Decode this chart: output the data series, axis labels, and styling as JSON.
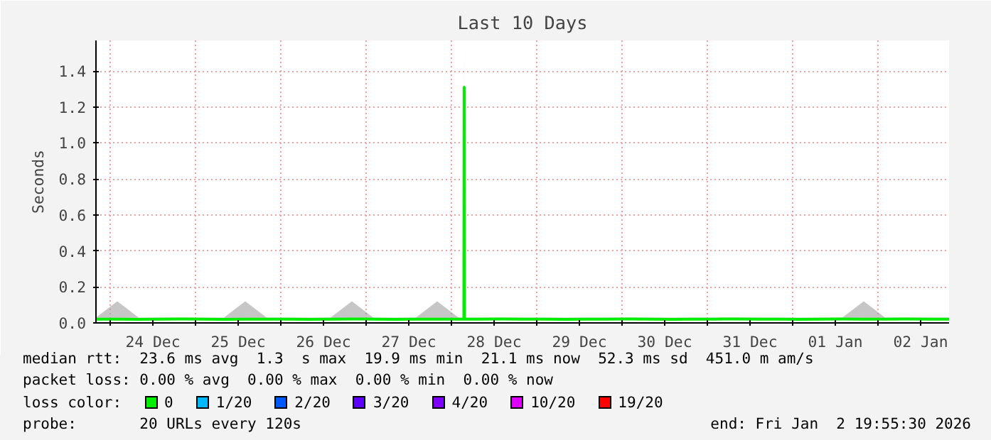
{
  "chart_data": {
    "type": "line",
    "title": "Last 10 Days",
    "ylabel": "Seconds",
    "legend_title": "loss color:",
    "x": [
      "2025-12-23T20:00",
      "2025-12-24T02:00",
      "2025-12-24T08:00",
      "2025-12-24T14:00",
      "2025-12-24T20:00",
      "2025-12-25T02:00",
      "2025-12-25T08:00",
      "2025-12-25T14:00",
      "2025-12-25T20:00",
      "2025-12-26T02:00",
      "2025-12-26T08:00",
      "2025-12-26T14:00",
      "2025-12-26T20:00",
      "2025-12-27T02:00",
      "2025-12-27T08:00",
      "2025-12-27T14:00",
      "2025-12-27T20:00",
      "2025-12-28T02:00",
      "2025-12-28T03:30",
      "2025-12-28T03:36",
      "2025-12-28T03:42",
      "2025-12-28T08:00",
      "2025-12-28T14:00",
      "2025-12-28T20:00",
      "2025-12-29T02:00",
      "2025-12-29T08:00",
      "2025-12-29T14:00",
      "2025-12-29T20:00",
      "2025-12-30T02:00",
      "2025-12-30T08:00",
      "2025-12-30T14:00",
      "2025-12-30T20:00",
      "2025-12-31T02:00",
      "2025-12-31T08:00",
      "2025-12-31T14:00",
      "2025-12-31T20:00",
      "2026-01-01T02:00",
      "2026-01-01T08:00",
      "2026-01-01T14:00",
      "2026-01-01T20:00",
      "2026-01-02T02:00",
      "2026-01-02T08:00",
      "2026-01-02T14:00",
      "2026-01-02T20:00"
    ],
    "series": [
      {
        "name": "0",
        "color": "#00ee00",
        "values": [
          0.021,
          0.021,
          0.02,
          0.021,
          0.022,
          0.021,
          0.02,
          0.021,
          0.021,
          0.021,
          0.02,
          0.021,
          0.022,
          0.021,
          0.02,
          0.021,
          0.021,
          0.021,
          0.021,
          1.31,
          0.021,
          0.021,
          0.022,
          0.021,
          0.021,
          0.02,
          0.021,
          0.021,
          0.022,
          0.021,
          0.02,
          0.021,
          0.021,
          0.022,
          0.021,
          0.021,
          0.02,
          0.021,
          0.022,
          0.021,
          0.021,
          0.022,
          0.021,
          0.021
        ],
        "lower": [
          0.018,
          0.018,
          0.018,
          0.018,
          0.018,
          0.018,
          0.018,
          0.018,
          0.018,
          0.018,
          0.018,
          0.018,
          0.018,
          0.018,
          0.018,
          0.018,
          0.018,
          0.018,
          0.018,
          0.018,
          0.018,
          0.018,
          0.018,
          0.018,
          0.018,
          0.018,
          0.018,
          0.018,
          0.018,
          0.018,
          0.018,
          0.018,
          0.018,
          0.018,
          0.018,
          0.018,
          0.018,
          0.018,
          0.018,
          0.018,
          0.018,
          0.018,
          0.018,
          0.018
        ],
        "upper": [
          0.03,
          0.12,
          0.03,
          0.03,
          0.03,
          0.03,
          0.03,
          0.12,
          0.03,
          0.03,
          0.03,
          0.03,
          0.12,
          0.03,
          0.03,
          0.03,
          0.12,
          0.03,
          0.03,
          1.57,
          0.03,
          0.03,
          0.03,
          0.03,
          0.03,
          0.03,
          0.03,
          0.03,
          0.03,
          0.03,
          0.03,
          0.03,
          0.03,
          0.03,
          0.03,
          0.03,
          0.03,
          0.03,
          0.03,
          0.12,
          0.03,
          0.03,
          0.03,
          0.03
        ]
      },
      {
        "name": "1/20",
        "color": "#00b8ff",
        "values": [
          null,
          null,
          null,
          null,
          null,
          null,
          null,
          null,
          null,
          null,
          null,
          null,
          null,
          null,
          null,
          null,
          null,
          null,
          null,
          null,
          null,
          null,
          null,
          null,
          null,
          null,
          null,
          null,
          null,
          null,
          null,
          null,
          null,
          null,
          null,
          null,
          null,
          null,
          null,
          null,
          null,
          null,
          null,
          null
        ]
      },
      {
        "name": "2/20",
        "color": "#0059ff",
        "values": [
          null,
          null,
          null,
          null,
          null,
          null,
          null,
          null,
          null,
          null,
          null,
          null,
          null,
          null,
          null,
          null,
          null,
          null,
          null,
          null,
          null,
          null,
          null,
          null,
          null,
          null,
          null,
          null,
          null,
          null,
          null,
          null,
          null,
          null,
          null,
          null,
          null,
          null,
          null,
          null,
          null,
          null,
          null,
          null
        ]
      },
      {
        "name": "3/20",
        "color": "#5e00ff",
        "values": [
          null,
          null,
          null,
          null,
          null,
          null,
          null,
          null,
          null,
          null,
          null,
          null,
          null,
          null,
          null,
          null,
          null,
          null,
          null,
          null,
          null,
          null,
          null,
          null,
          null,
          null,
          null,
          null,
          null,
          null,
          null,
          null,
          null,
          null,
          null,
          null,
          null,
          null,
          null,
          null,
          null,
          null,
          null,
          null
        ]
      },
      {
        "name": "4/20",
        "color": "#7e00ff",
        "values": [
          null,
          null,
          null,
          null,
          null,
          null,
          null,
          null,
          null,
          null,
          null,
          null,
          null,
          null,
          null,
          null,
          null,
          null,
          null,
          null,
          null,
          null,
          null,
          null,
          null,
          null,
          null,
          null,
          null,
          null,
          null,
          null,
          null,
          null,
          null,
          null,
          null,
          null,
          null,
          null,
          null,
          null,
          null,
          null
        ]
      },
      {
        "name": "10/20",
        "color": "#dd00ff",
        "values": [
          null,
          null,
          null,
          null,
          null,
          null,
          null,
          null,
          null,
          null,
          null,
          null,
          null,
          null,
          null,
          null,
          null,
          null,
          null,
          null,
          null,
          null,
          null,
          null,
          null,
          null,
          null,
          null,
          null,
          null,
          null,
          null,
          null,
          null,
          null,
          null,
          null,
          null,
          null,
          null,
          null,
          null,
          null,
          null
        ]
      },
      {
        "name": "19/20",
        "color": "#ff0000",
        "values": [
          null,
          null,
          null,
          null,
          null,
          null,
          null,
          null,
          null,
          null,
          null,
          null,
          null,
          null,
          null,
          null,
          null,
          null,
          null,
          null,
          null,
          null,
          null,
          null,
          null,
          null,
          null,
          null,
          null,
          null,
          null,
          null,
          null,
          null,
          null,
          null,
          null,
          null,
          null,
          null,
          null,
          null,
          null,
          null
        ]
      }
    ],
    "xlim": [
      "2025-12-23T20:00",
      "2026-01-02T20:00"
    ],
    "xticks": [
      {
        "value": "2025-12-24T00:00",
        "label": null
      },
      {
        "value": "2025-12-24T12:00",
        "label": "24 Dec"
      },
      {
        "value": "2025-12-25T00:00",
        "label": null
      },
      {
        "value": "2025-12-25T12:00",
        "label": "25 Dec"
      },
      {
        "value": "2025-12-26T00:00",
        "label": null
      },
      {
        "value": "2025-12-26T12:00",
        "label": "26 Dec"
      },
      {
        "value": "2025-12-27T00:00",
        "label": null
      },
      {
        "value": "2025-12-27T12:00",
        "label": "27 Dec"
      },
      {
        "value": "2025-12-28T00:00",
        "label": null
      },
      {
        "value": "2025-12-28T12:00",
        "label": "28 Dec"
      },
      {
        "value": "2025-12-29T00:00",
        "label": null
      },
      {
        "value": "2025-12-29T12:00",
        "label": "29 Dec"
      },
      {
        "value": "2025-12-30T00:00",
        "label": null
      },
      {
        "value": "2025-12-30T12:00",
        "label": "30 Dec"
      },
      {
        "value": "2025-12-31T00:00",
        "label": null
      },
      {
        "value": "2025-12-31T12:00",
        "label": "31 Dec"
      },
      {
        "value": "2026-01-01T00:00",
        "label": null
      },
      {
        "value": "2026-01-01T12:00",
        "label": "01 Jan"
      },
      {
        "value": "2026-01-02T00:00",
        "label": null
      },
      {
        "value": "2026-01-02T12:00",
        "label": "02 Jan"
      }
    ],
    "ylim": [
      0,
      1.57
    ],
    "yticks": [
      {
        "value": 0,
        "label": "0.0"
      },
      {
        "value": 0.2,
        "label": "0.2"
      },
      {
        "value": 0.4,
        "label": "0.4"
      },
      {
        "value": 0.6,
        "label": "0.6"
      },
      {
        "value": 0.8,
        "label": "0.8"
      },
      {
        "value": 1.0,
        "label": "1.0"
      },
      {
        "value": 1.2,
        "label": "1.2"
      },
      {
        "value": 1.4,
        "label": "1.4"
      }
    ],
    "grid": true,
    "legend": "bottom",
    "marker": "none",
    "line_style": "solid",
    "annotations": [
      "median rtt:  23.6 ms avg  1.3  s max  19.9 ms min  21.1 ms now  52.3 ms sd  451.0 m am/s",
      "packet loss: 0.00 % avg  0.00 % max  0.00 % min  0.00 % now",
      "probe:       20 URLs every 120s",
      "end: Fri Jan  2 19:55:30 2026"
    ]
  }
}
